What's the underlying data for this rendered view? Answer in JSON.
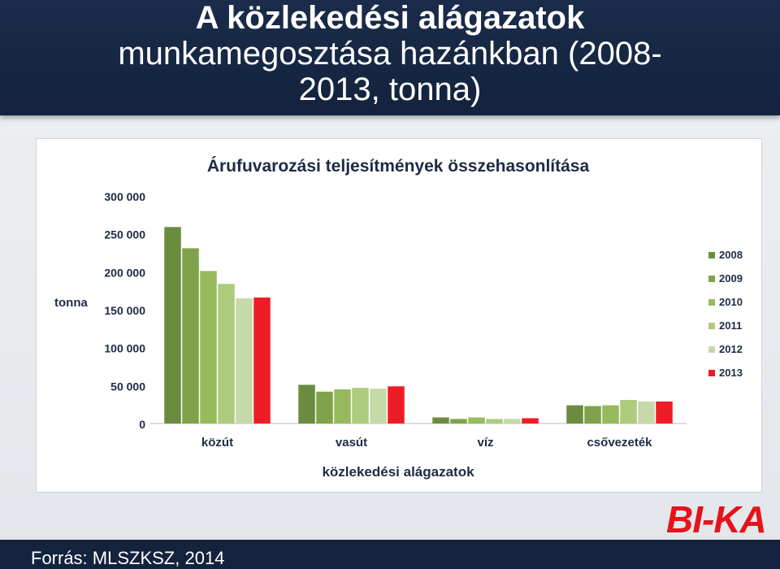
{
  "slide": {
    "title_line1": "A közlekedési alágazatok",
    "title_line2": "munkamegosztása hazánkban (2008-",
    "title_line3": "2013, tonna)",
    "source": "Forrás: MLSZKSZ, 2014",
    "logo": "BI-KA"
  },
  "colors": {
    "title_bar": "#13233d",
    "logo": "#e4141b"
  },
  "chart_data": {
    "type": "bar",
    "title": "Árufuvarozási teljesítmények összehasonlítása",
    "xlabel": "közlekedési alágazatok",
    "ylabel": "tonna",
    "ylim": [
      0,
      300000
    ],
    "yticks": [
      0,
      50000,
      100000,
      150000,
      200000,
      250000,
      300000
    ],
    "ytick_labels": [
      "0",
      "50 000",
      "100 000",
      "150 000",
      "200 000",
      "250 000",
      "300 000"
    ],
    "categories": [
      "közút",
      "vasút",
      "víz",
      "csővezeték"
    ],
    "series": [
      {
        "name": "2008",
        "color": "#6a8c3f",
        "values": [
          259000,
          51000,
          8000,
          24000
        ]
      },
      {
        "name": "2009",
        "color": "#7ea34a",
        "values": [
          231000,
          42000,
          6000,
          23000
        ]
      },
      {
        "name": "2010",
        "color": "#96bb5c",
        "values": [
          201000,
          45000,
          8000,
          24000
        ]
      },
      {
        "name": "2011",
        "color": "#aecc7e",
        "values": [
          184000,
          47000,
          6000,
          31000
        ]
      },
      {
        "name": "2012",
        "color": "#c6d9a8",
        "values": [
          165000,
          46000,
          6000,
          29000
        ]
      },
      {
        "name": "2013",
        "color": "#ee1c25",
        "values": [
          166000,
          49000,
          7000,
          29000
        ]
      }
    ],
    "legend_position": "right",
    "grid": false
  }
}
